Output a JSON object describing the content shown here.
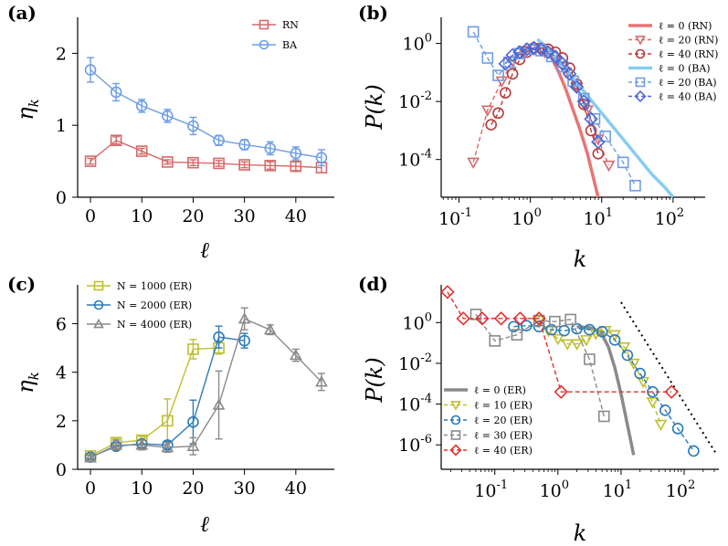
{
  "figure": {
    "panels": [
      "(a)",
      "(b)",
      "(c)",
      "(d)"
    ]
  },
  "chart_data": [
    {
      "panel": "(a)",
      "type": "line",
      "xlabel": "ℓ",
      "ylabel": "η_k",
      "xlim": [
        -2.5,
        47.5
      ],
      "ylim": [
        0,
        2.5
      ],
      "xticks": [
        0,
        10,
        20,
        30,
        40
      ],
      "yticks": [
        0,
        1,
        2
      ],
      "legend": "top-right",
      "series": [
        {
          "name": "RN",
          "color": "#d46a6a",
          "marker": "square",
          "x": [
            0,
            5,
            10,
            15,
            20,
            25,
            30,
            35,
            40,
            45
          ],
          "y": [
            0.5,
            0.79,
            0.64,
            0.49,
            0.48,
            0.47,
            0.45,
            0.44,
            0.43,
            0.41
          ],
          "err": [
            0.04,
            0.05,
            0.04,
            0.03,
            0.04,
            0.04,
            0.04,
            0.05,
            0.06,
            0.07
          ]
        },
        {
          "name": "BA",
          "color": "#6d9de6",
          "marker": "circle",
          "x": [
            0,
            5,
            10,
            15,
            20,
            25,
            30,
            35,
            40,
            45
          ],
          "y": [
            1.77,
            1.46,
            1.27,
            1.13,
            0.99,
            0.79,
            0.73,
            0.68,
            0.61,
            0.55
          ],
          "err": [
            0.17,
            0.12,
            0.09,
            0.09,
            0.12,
            0.07,
            0.07,
            0.09,
            0.09,
            0.11
          ]
        }
      ]
    },
    {
      "panel": "(b)",
      "type": "line",
      "xlabel": "k",
      "ylabel": "P(k)",
      "xscale": "log",
      "yscale": "log",
      "xlim_log10": [
        -1.25,
        2.45
      ],
      "ylim_log10": [
        -5.3,
        0.9
      ],
      "xtick_powers": [
        -1,
        0,
        1,
        2
      ],
      "ytick_powers": [
        -4,
        -2,
        0
      ],
      "tick_base": "10",
      "legend": "top-right",
      "series": [
        {
          "name": "ℓ = 0 (RN)",
          "color": "#e87575",
          "style": "solid",
          "x_log10": [
            0.15,
            0.2,
            0.3,
            0.4,
            0.5,
            0.6,
            0.7,
            0.8,
            0.85,
            0.9,
            0.95
          ],
          "y_log10": [
            0.05,
            -0.1,
            -0.5,
            -1.0,
            -1.6,
            -2.3,
            -3.0,
            -3.8,
            -4.3,
            -4.8,
            -5.3
          ]
        },
        {
          "name": "ℓ = 20 (RN)",
          "color": "#d46a6a",
          "style": "dashed",
          "marker": "triangle-down",
          "x_log10": [
            -0.8,
            -0.6,
            -0.4,
            -0.25,
            -0.1,
            0.05,
            0.2,
            0.35,
            0.5,
            0.65,
            0.8,
            0.95,
            1.1
          ],
          "y_log10": [
            -4.1,
            -2.3,
            -1.3,
            -0.6,
            -0.25,
            -0.2,
            -0.3,
            -0.6,
            -1.0,
            -1.5,
            -2.3,
            -3.3,
            -4.2
          ]
        },
        {
          "name": "ℓ = 40 (RN)",
          "color": "#b83a3a",
          "style": "dashed",
          "marker": "circle",
          "x_log10": [
            -0.55,
            -0.45,
            -0.35,
            -0.25,
            -0.15,
            -0.05,
            0.05,
            0.15,
            0.25,
            0.35,
            0.45,
            0.55,
            0.65,
            0.75,
            0.85,
            0.95
          ],
          "y_log10": [
            -2.8,
            -2.4,
            -1.7,
            -1.05,
            -0.55,
            -0.3,
            -0.15,
            -0.15,
            -0.2,
            -0.3,
            -0.5,
            -0.85,
            -1.4,
            -2.1,
            -3.0,
            -3.8
          ]
        },
        {
          "name": "ℓ = 0 (BA)",
          "color": "#87ccf0",
          "style": "solid",
          "x_log10": [
            0.1,
            0.3,
            0.5,
            0.7,
            0.9,
            1.1,
            1.3,
            1.5,
            1.7,
            1.9,
            2.0
          ],
          "y_log10": [
            0.15,
            -0.35,
            -0.9,
            -1.5,
            -2.1,
            -2.7,
            -3.3,
            -3.9,
            -4.5,
            -5.0,
            -5.3
          ]
        },
        {
          "name": "ℓ = 20 (BA)",
          "color": "#6d9de6",
          "style": "dashed",
          "marker": "square",
          "x_log10": [
            -0.8,
            -0.6,
            -0.45,
            -0.3,
            -0.15,
            0.0,
            0.15,
            0.3,
            0.45,
            0.6,
            0.75,
            0.9,
            1.05,
            1.3,
            1.47
          ],
          "y_log10": [
            0.4,
            -0.5,
            -1.1,
            -0.65,
            -0.35,
            -0.2,
            -0.25,
            -0.45,
            -0.8,
            -1.3,
            -1.9,
            -2.6,
            -3.2,
            -4.1,
            -4.9
          ]
        },
        {
          "name": "ℓ = 40 (BA)",
          "color": "#4a68d6",
          "style": "dashed",
          "marker": "diamond",
          "x_log10": [
            -0.35,
            -0.25,
            -0.15,
            -0.05,
            0.05,
            0.15,
            0.25,
            0.35,
            0.45,
            0.55,
            0.65,
            0.75,
            0.85,
            0.95
          ],
          "y_log10": [
            -0.7,
            -0.4,
            -0.3,
            -0.2,
            -0.15,
            -0.2,
            -0.3,
            -0.45,
            -0.7,
            -1.05,
            -1.5,
            -2.0,
            -2.6,
            -3.4
          ]
        }
      ]
    },
    {
      "panel": "(c)",
      "type": "line",
      "xlabel": "ℓ",
      "ylabel": "η_k",
      "xlim": [
        -2.5,
        47.5
      ],
      "ylim": [
        0,
        7.6
      ],
      "xticks": [
        0,
        10,
        20,
        30,
        40
      ],
      "yticks": [
        0,
        2,
        4,
        6
      ],
      "legend": "top-left",
      "series": [
        {
          "name": "N = 1000 (ER)",
          "color": "#bfbf2f",
          "marker": "square",
          "x": [
            0,
            5,
            10,
            15,
            20,
            25
          ],
          "y": [
            0.55,
            1.1,
            1.2,
            2.0,
            4.95,
            5.0
          ],
          "err": [
            0.1,
            0.15,
            0.15,
            0.9,
            0.4,
            0.25
          ]
        },
        {
          "name": "N = 2000 (ER)",
          "color": "#2a7ab8",
          "marker": "circle",
          "x": [
            0,
            5,
            10,
            15,
            20,
            25,
            30
          ],
          "y": [
            0.5,
            0.95,
            1.05,
            1.0,
            1.95,
            5.45,
            5.3
          ],
          "err": [
            0.08,
            0.15,
            0.15,
            0.15,
            0.9,
            0.45,
            0.3
          ]
        },
        {
          "name": "N = 4000 (ER)",
          "color": "#8a8a8a",
          "marker": "triangle-up",
          "x": [
            0,
            5,
            10,
            15,
            20,
            25,
            30,
            35,
            40,
            45
          ],
          "y": [
            0.48,
            1.0,
            1.0,
            0.9,
            0.95,
            2.65,
            6.2,
            5.75,
            4.7,
            3.6
          ],
          "err": [
            0.1,
            0.2,
            0.2,
            0.2,
            0.35,
            1.4,
            0.45,
            0.2,
            0.25,
            0.35
          ]
        }
      ]
    },
    {
      "panel": "(d)",
      "type": "line",
      "xlabel": "k",
      "ylabel": "P(k)",
      "xscale": "log",
      "yscale": "log",
      "xlim_log10": [
        -1.85,
        2.55
      ],
      "ylim_log10": [
        -7.2,
        1.85
      ],
      "xtick_powers": [
        -1,
        0,
        1,
        2
      ],
      "ytick_powers": [
        -6,
        -4,
        -2,
        0
      ],
      "tick_base": "10",
      "legend": "bottom-left",
      "guide_line": {
        "color": "#000000",
        "style": "dotted",
        "x_log10": [
          1.0,
          2.5
        ],
        "y_log10": [
          1.0,
          -6.4
        ]
      },
      "series": [
        {
          "name": "ℓ = 0 (ER)",
          "color": "#8a8a8a",
          "style": "solid",
          "x_log10": [
            0.3,
            0.5,
            0.6,
            0.7,
            0.8,
            0.9,
            1.0,
            1.1,
            1.2
          ],
          "y_log10": [
            -0.2,
            -0.25,
            -0.35,
            -0.6,
            -1.2,
            -2.2,
            -3.5,
            -5.0,
            -6.5
          ]
        },
        {
          "name": "ℓ = 10 (ER)",
          "color": "#bfbf2f",
          "style": "dashed",
          "marker": "triangle-down",
          "x_log10": [
            -0.3,
            -0.15,
            0.0,
            0.15,
            0.3,
            0.45,
            0.6,
            0.75,
            0.9,
            1.05,
            1.2,
            1.35,
            1.5,
            1.63
          ],
          "y_log10": [
            0.1,
            -0.4,
            -0.8,
            -1.05,
            -1.05,
            -0.85,
            -0.55,
            -0.4,
            -0.6,
            -1.2,
            -2.0,
            -2.9,
            -3.9,
            -5.0
          ]
        },
        {
          "name": "ℓ = 20 (ER)",
          "color": "#2a7ab8",
          "style": "dashed",
          "marker": "circle",
          "x_log10": [
            -0.7,
            -0.5,
            -0.3,
            -0.1,
            0.1,
            0.3,
            0.5,
            0.7,
            0.9,
            1.1,
            1.3,
            1.5,
            1.7,
            1.9,
            2.15
          ],
          "y_log10": [
            -0.2,
            -0.15,
            -0.2,
            -0.35,
            -0.4,
            -0.3,
            -0.35,
            -0.45,
            -0.85,
            -1.6,
            -2.5,
            -3.4,
            -4.3,
            -5.2,
            -6.3
          ]
        },
        {
          "name": "ℓ = 30 (ER)",
          "color": "#8a8a8a",
          "style": "dashed",
          "marker": "square",
          "x_log10": [
            -1.3,
            -1.0,
            -0.65,
            -0.3,
            -0.05,
            0.2,
            0.5,
            0.73
          ],
          "y_log10": [
            0.4,
            -0.9,
            -0.6,
            0.1,
            0.05,
            0.15,
            -1.8,
            -4.6
          ]
        },
        {
          "name": "ℓ = 40 (ER)",
          "color": "#e03030",
          "style": "dashed",
          "marker": "diamond",
          "x_log10": [
            -1.75,
            -1.5,
            -1.2,
            -0.9,
            -0.6,
            -0.3,
            0.05,
            1.8
          ],
          "y_log10": [
            1.5,
            0.2,
            0.2,
            0.2,
            0.2,
            0.2,
            -3.4,
            -3.4
          ]
        }
      ]
    }
  ]
}
